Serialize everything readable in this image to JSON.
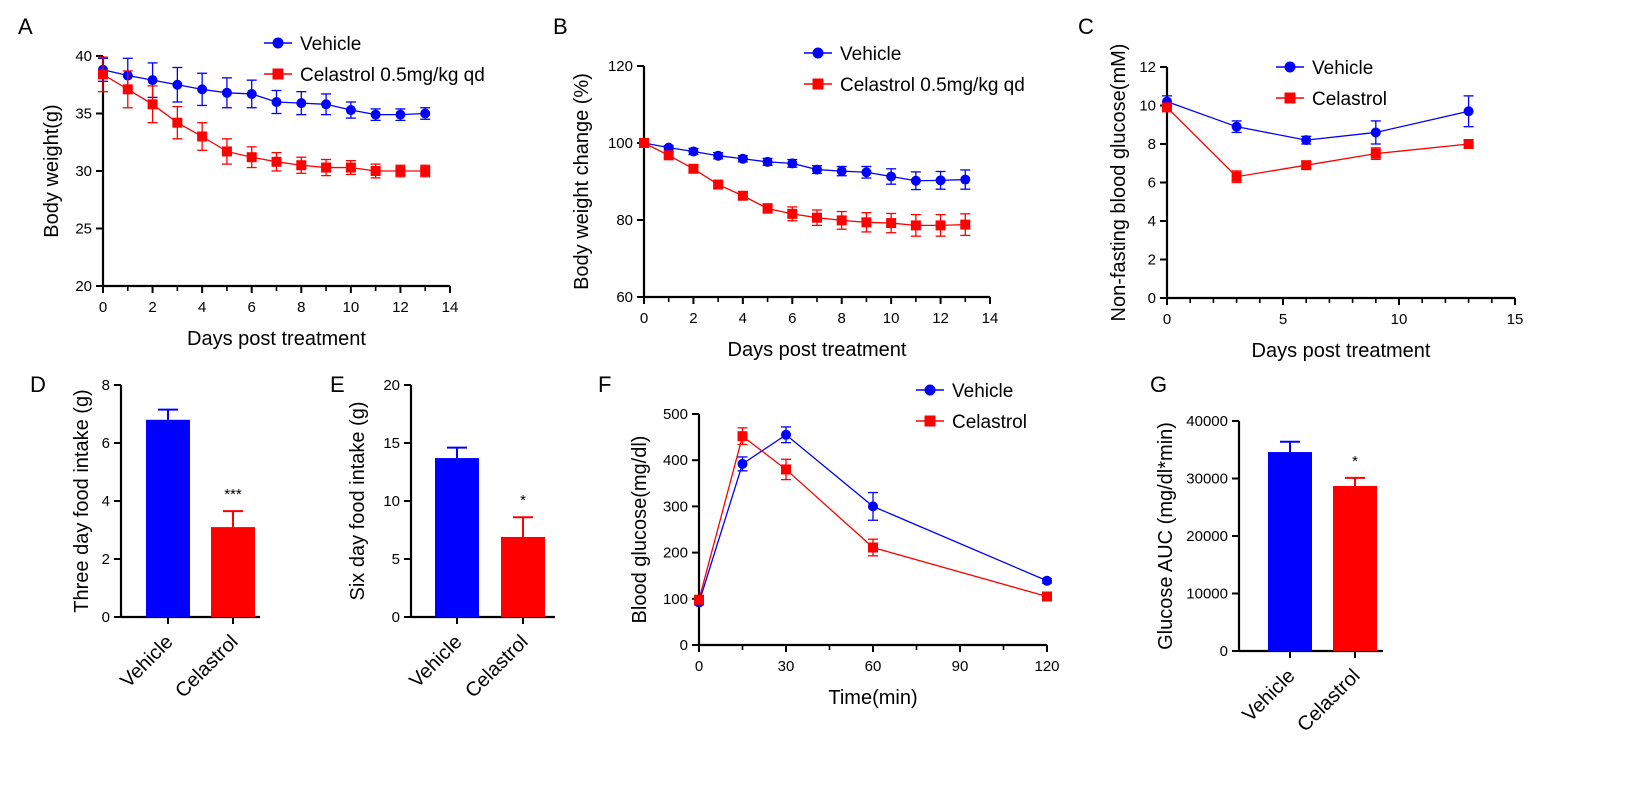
{
  "colors": {
    "vehicle": "#0000ff",
    "celastrol": "#ff0000",
    "axis": "#000000"
  },
  "chart_data": [
    {
      "id": "A",
      "type": "line",
      "panel_label": "A",
      "xlabel": "Days post treatment",
      "ylabel": "Body weight(g)",
      "xlim": [
        0,
        14
      ],
      "ylim": [
        20,
        40
      ],
      "xticks": [
        0,
        2,
        4,
        6,
        8,
        10,
        12,
        14
      ],
      "yticks": [
        20,
        25,
        30,
        35,
        40
      ],
      "legend_position": "top-right",
      "x": [
        0,
        1,
        2,
        3,
        4,
        5,
        6,
        7,
        8,
        9,
        10,
        11,
        12,
        13
      ],
      "series": [
        {
          "name": "Vehicle",
          "color": "#0000ff",
          "marker": "circle",
          "values": [
            38.8,
            38.3,
            37.9,
            37.5,
            37.1,
            36.8,
            36.7,
            36.0,
            35.9,
            35.8,
            35.3,
            34.9,
            34.9,
            35.0
          ],
          "errors": [
            1.0,
            1.5,
            1.5,
            1.5,
            1.4,
            1.3,
            1.2,
            1.0,
            1.0,
            0.9,
            0.7,
            0.5,
            0.5,
            0.5
          ]
        },
        {
          "name": "Celastrol 0.5mg/kg qd",
          "color": "#ff0000",
          "marker": "square",
          "values": [
            38.4,
            37.1,
            35.8,
            34.2,
            33.0,
            31.7,
            31.2,
            30.8,
            30.5,
            30.3,
            30.3,
            30.0,
            30.0,
            30.0
          ],
          "errors": [
            1.5,
            1.6,
            1.6,
            1.4,
            1.2,
            1.1,
            0.9,
            0.8,
            0.7,
            0.7,
            0.6,
            0.6,
            0.5,
            0.5
          ]
        }
      ]
    },
    {
      "id": "B",
      "type": "line",
      "panel_label": "B",
      "xlabel": "Days post treatment",
      "ylabel": "Body weight change (%)",
      "xlim": [
        0,
        14
      ],
      "ylim": [
        60,
        120
      ],
      "xticks": [
        0,
        2,
        4,
        6,
        8,
        10,
        12,
        14
      ],
      "yticks": [
        60,
        80,
        100,
        120
      ],
      "legend_position": "top-right",
      "x": [
        0,
        1,
        2,
        3,
        4,
        5,
        6,
        7,
        8,
        9,
        10,
        11,
        12,
        13
      ],
      "series": [
        {
          "name": "Vehicle",
          "color": "#0000ff",
          "marker": "circle",
          "values": [
            100,
            98.8,
            97.8,
            96.7,
            95.9,
            95.1,
            94.7,
            93.1,
            92.7,
            92.4,
            91.3,
            90.2,
            90.3,
            90.5
          ],
          "errors": [
            0,
            0.5,
            0.8,
            0.8,
            0.8,
            0.9,
            1.0,
            1.0,
            1.2,
            1.5,
            2.0,
            2.3,
            2.3,
            2.5
          ]
        },
        {
          "name": "Celastrol 0.5mg/kg qd",
          "color": "#ff0000",
          "marker": "square",
          "values": [
            100,
            96.8,
            93.3,
            89.2,
            86.3,
            83.0,
            81.6,
            80.6,
            79.9,
            79.4,
            79.2,
            78.6,
            78.6,
            78.8
          ],
          "errors": [
            0,
            0.8,
            1.0,
            1.0,
            1.0,
            1.2,
            1.8,
            2.0,
            2.3,
            2.5,
            2.5,
            2.8,
            2.8,
            2.8
          ]
        }
      ]
    },
    {
      "id": "C",
      "type": "line",
      "panel_label": "C",
      "xlabel": "Days post treatment",
      "ylabel": "Non-fasting blood glucose(mM)",
      "xlim": [
        0,
        15
      ],
      "ylim": [
        0,
        12
      ],
      "xticks": [
        0,
        5,
        10,
        15
      ],
      "yticks": [
        0,
        2,
        4,
        6,
        8,
        10,
        12
      ],
      "legend_position": "top-center",
      "x": [
        0,
        3,
        6,
        9,
        13
      ],
      "series": [
        {
          "name": "Vehicle",
          "color": "#0000ff",
          "marker": "circle",
          "values": [
            10.2,
            8.9,
            8.2,
            8.6,
            9.7
          ],
          "errors": [
            0.3,
            0.3,
            0.2,
            0.6,
            0.8
          ]
        },
        {
          "name": "Celastrol",
          "color": "#ff0000",
          "marker": "square",
          "values": [
            9.9,
            6.3,
            6.9,
            7.5,
            8.0
          ],
          "errors": [
            0.2,
            0.3,
            0.2,
            0.3,
            0.2
          ]
        }
      ]
    },
    {
      "id": "D",
      "type": "bar",
      "panel_label": "D",
      "xlabel": "",
      "ylabel": "Three day food intake (g)",
      "ylim": [
        0,
        8
      ],
      "yticks": [
        0,
        2,
        4,
        6,
        8
      ],
      "categories": [
        "Vehicle",
        "Celastrol"
      ],
      "values": [
        6.8,
        3.1
      ],
      "errors": [
        0.35,
        0.55
      ],
      "colors": [
        "#0000ff",
        "#ff0000"
      ],
      "annotations": [
        "",
        "***"
      ]
    },
    {
      "id": "E",
      "type": "bar",
      "panel_label": "E",
      "xlabel": "",
      "ylabel": "Six day food intake (g)",
      "ylim": [
        0,
        20
      ],
      "yticks": [
        0,
        5,
        10,
        15,
        20
      ],
      "categories": [
        "Vehicle",
        "Celastrol"
      ],
      "values": [
        13.7,
        6.9
      ],
      "errors": [
        0.9,
        1.7
      ],
      "colors": [
        "#0000ff",
        "#ff0000"
      ],
      "annotations": [
        "",
        "*"
      ]
    },
    {
      "id": "F",
      "type": "line",
      "panel_label": "F",
      "xlabel": "Time(min)",
      "ylabel": "Blood glucose(mg/dl)",
      "xlim": [
        0,
        120
      ],
      "ylim": [
        0,
        500
      ],
      "xticks": [
        0,
        30,
        60,
        90,
        120
      ],
      "yticks": [
        0,
        100,
        200,
        300,
        400,
        500
      ],
      "legend_position": "top-right",
      "x": [
        0,
        15,
        30,
        60,
        120
      ],
      "series": [
        {
          "name": "Vehicle",
          "color": "#0000ff",
          "marker": "circle",
          "values": [
            92,
            392,
            455,
            300,
            139
          ],
          "errors": [
            5,
            15,
            17,
            30,
            5
          ]
        },
        {
          "name": "Celastrol",
          "color": "#ff0000",
          "marker": "square",
          "values": [
            98,
            452,
            380,
            211,
            105
          ],
          "errors": [
            5,
            18,
            22,
            18,
            5
          ]
        }
      ]
    },
    {
      "id": "G",
      "type": "bar",
      "panel_label": "G",
      "xlabel": "",
      "ylabel": "Glucose AUC (mg/dl*min)",
      "ylim": [
        0,
        40000
      ],
      "yticks": [
        0,
        10000,
        20000,
        30000,
        40000
      ],
      "categories": [
        "Vehicle",
        "Celastrol"
      ],
      "values": [
        34600,
        28700
      ],
      "errors": [
        1800,
        1400
      ],
      "colors": [
        "#0000ff",
        "#ff0000"
      ],
      "annotations": [
        "",
        "*"
      ]
    }
  ]
}
